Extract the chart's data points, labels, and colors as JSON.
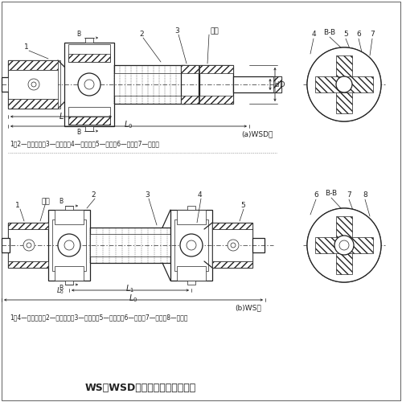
{
  "bg_color": "#ffffff",
  "line_color": "#222222",
  "title": "WS、WSD型十字轴式万向联轴器",
  "label_a": "(a)WSD型",
  "label_b": "(b)WS型",
  "caption_a": "1、2—半联轴器；3—圆锥销；4—十字轴；5—销钉；6—套筒；7—圆柱销",
  "caption_b": "1、4—半联轴器；2—又形接头；3—圆锥销；5—十字轴；6—销钉；7—套筒；8—圆柱销",
  "font_size_tiny": 5.5,
  "font_size_small": 6.5,
  "font_size_med": 7.5,
  "font_size_title": 9
}
